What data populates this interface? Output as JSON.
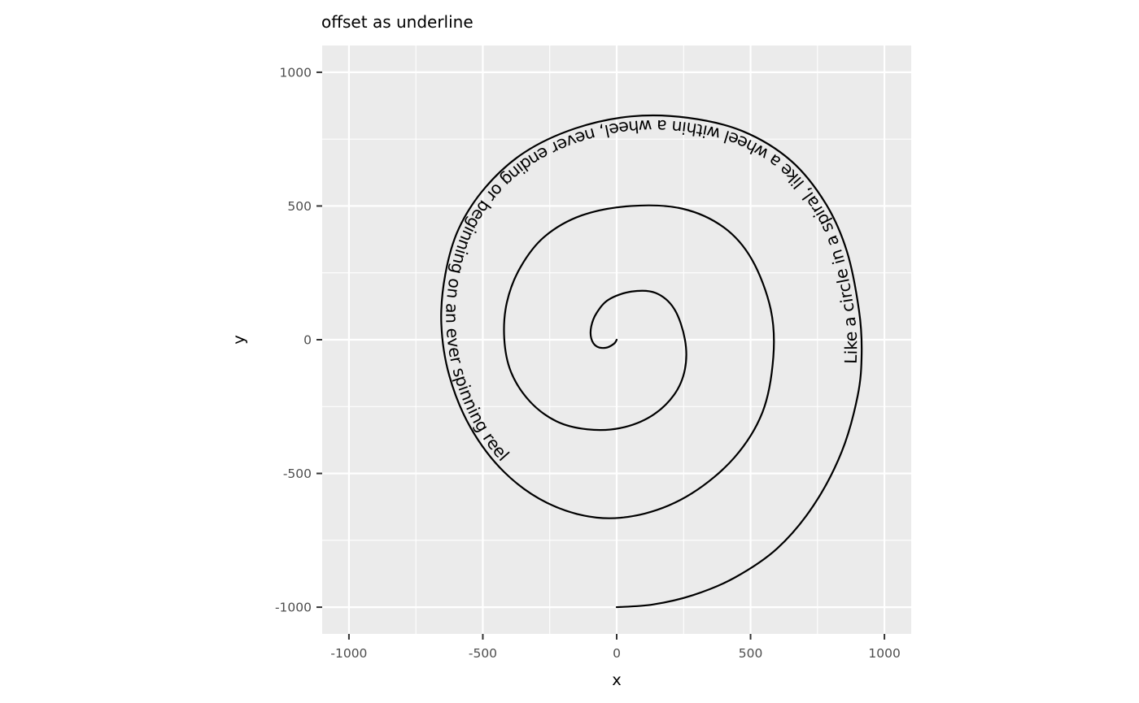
{
  "chart_data": {
    "type": "line",
    "title": "offset as underline",
    "xlabel": "x",
    "ylabel": "y",
    "xlim": [
      -1100,
      1100
    ],
    "ylim": [
      -1100,
      1100
    ],
    "x_ticks": [
      -1000,
      -500,
      0,
      500,
      1000
    ],
    "y_ticks": [
      -1000,
      -500,
      0,
      500,
      1000
    ],
    "x_tick_labels": [
      "-1000",
      "-500",
      "0",
      "500",
      "1000"
    ],
    "y_tick_labels": [
      "-1000",
      "-500",
      "0",
      "500",
      "1000"
    ],
    "grid": true,
    "panel_background": "#ebebeb",
    "grid_color": "#ffffff",
    "line_color": "#000000",
    "series": [
      {
        "points": [
          [
            0,
            -1000
          ],
          [
            135,
            -990
          ],
          [
            285,
            -955
          ],
          [
            440,
            -890
          ],
          [
            600,
            -780
          ],
          [
            735,
            -620
          ],
          [
            840,
            -420
          ],
          [
            900,
            -210
          ],
          [
            915,
            -50
          ],
          [
            905,
            110
          ],
          [
            860,
            330
          ],
          [
            780,
            510
          ],
          [
            650,
            670
          ],
          [
            470,
            780
          ],
          [
            265,
            830
          ],
          [
            55,
            835
          ],
          [
            -155,
            790
          ],
          [
            -345,
            700
          ],
          [
            -490,
            570
          ],
          [
            -590,
            415
          ],
          [
            -640,
            245
          ],
          [
            -655,
            60
          ],
          [
            -625,
            -135
          ],
          [
            -545,
            -330
          ],
          [
            -420,
            -495
          ],
          [
            -260,
            -610
          ],
          [
            -75,
            -665
          ],
          [
            105,
            -650
          ],
          [
            280,
            -575
          ],
          [
            440,
            -440
          ],
          [
            545,
            -270
          ],
          [
            585,
            -65
          ],
          [
            575,
            115
          ],
          [
            505,
            300
          ],
          [
            400,
            420
          ],
          [
            245,
            490
          ],
          [
            55,
            500
          ],
          [
            -130,
            465
          ],
          [
            -270,
            385
          ],
          [
            -360,
            270
          ],
          [
            -410,
            140
          ],
          [
            -420,
            5
          ],
          [
            -395,
            -120
          ],
          [
            -325,
            -230
          ],
          [
            -225,
            -305
          ],
          [
            -110,
            -335
          ],
          [
            15,
            -330
          ],
          [
            130,
            -285
          ],
          [
            215,
            -205
          ],
          [
            255,
            -110
          ],
          [
            255,
            0
          ],
          [
            215,
            115
          ],
          [
            145,
            175
          ],
          [
            55,
            180
          ],
          [
            -30,
            150
          ],
          [
            -75,
            100
          ],
          [
            -95,
            50
          ],
          [
            -95,
            5
          ],
          [
            -75,
            -25
          ],
          [
            -40,
            -30
          ],
          [
            -10,
            -15
          ],
          [
            0,
            0
          ]
        ]
      }
    ],
    "path_text": "Like a circle in a spiral, like a wheel within a wheel, never ending or beginning on an ever spinning reel",
    "text_start_fraction": 0.15
  }
}
